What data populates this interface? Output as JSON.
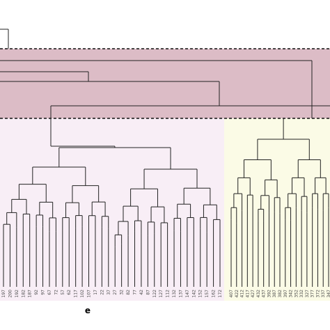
{
  "pink_leaves": [
    "197",
    "200",
    "192",
    "182",
    "187",
    "92",
    "97",
    "67",
    "72",
    "57",
    "62",
    "117",
    "102",
    "107",
    "17",
    "22",
    "37",
    "27",
    "32",
    "82",
    "77",
    "42",
    "87",
    "122",
    "127",
    "112",
    "132",
    "137",
    "147",
    "142",
    "152",
    "157",
    "162",
    "172"
  ],
  "yellow_leaves": [
    "407",
    "422",
    "412",
    "417",
    "427",
    "432",
    "437",
    "392",
    "387",
    "382",
    "397",
    "342",
    "352",
    "332",
    "327",
    "377",
    "372",
    "337",
    "347"
  ],
  "panel_label": "e"
}
